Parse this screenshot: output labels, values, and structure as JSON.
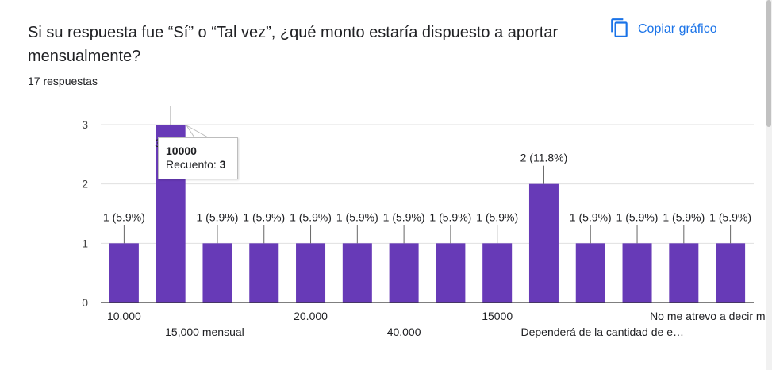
{
  "question": "Si su respuesta fue “Sí” o “Tal vez”, ¿qué monto estaría dispuesto a aportar mensualmente?",
  "response_count": "17 respuestas",
  "copy_button": {
    "label": "Copiar gráfico",
    "icon": "copy-icon"
  },
  "colors": {
    "bar": "#673ab7",
    "accent": "#1a73e8",
    "grid": "#e0e0e0"
  },
  "tooltip": {
    "title": "10000",
    "label": "Recuento:",
    "value": "3"
  },
  "chart_data": {
    "type": "bar",
    "categories": [
      "10.000",
      "10000",
      "15,000 mensual",
      "",
      "20.000",
      "",
      "40.000",
      "",
      "15000",
      "",
      "Dependerá de la cantidad de e…",
      "",
      "No me atrevo a decir m…",
      ""
    ],
    "visible_tick_labels": [
      {
        "index": 0,
        "text": "10.000",
        "row": 1
      },
      {
        "index": 2,
        "text": "15,000 mensual",
        "row": 2
      },
      {
        "index": 4,
        "text": "20.000",
        "row": 1
      },
      {
        "index": 6,
        "text": "40.000",
        "row": 2
      },
      {
        "index": 8,
        "text": "15000",
        "row": 1
      },
      {
        "index": 10,
        "text": "Dependerá de la cantidad de e…",
        "row": 2
      },
      {
        "index": 12,
        "text": "No me atrevo a decir m…",
        "row": 1
      }
    ],
    "values": [
      1,
      3,
      1,
      1,
      1,
      1,
      1,
      1,
      1,
      2,
      1,
      1,
      1,
      1
    ],
    "data_labels": [
      "1 (5.9%)",
      "3 (",
      "1 (5.9%)",
      "1 (5.9%)",
      "1 (5.9%)",
      "1 (5.9%)",
      "1 (5.9%)",
      "1 (5.9%)",
      "1 (5.9%)",
      "2 (11.8%)",
      "1 (5.9%)",
      "1 (5.9%)",
      "1 (5.9%)",
      "1 (5.9%)"
    ],
    "y_ticks": [
      "0",
      "1",
      "2",
      "3"
    ],
    "ylim": [
      0,
      3
    ],
    "grid": true,
    "title": "",
    "xlabel": "",
    "ylabel": ""
  }
}
